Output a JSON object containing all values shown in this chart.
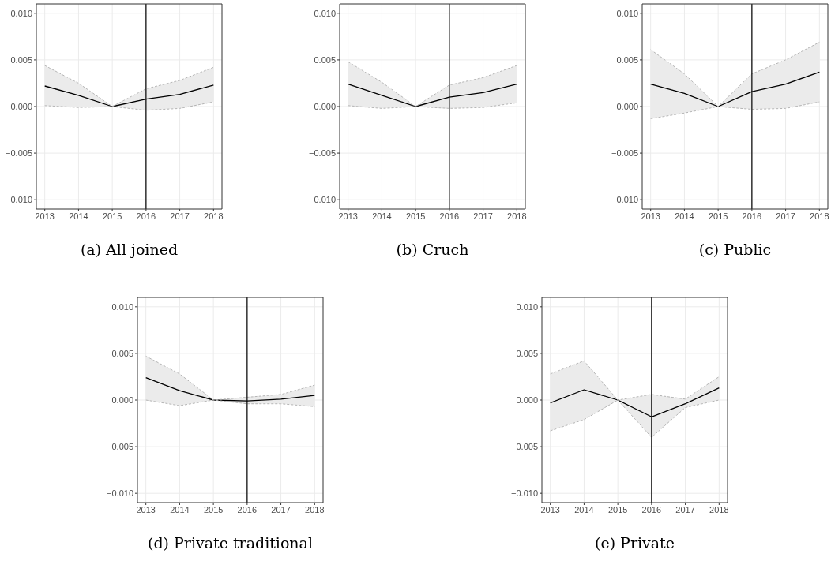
{
  "chart_data": [
    {
      "type": "line",
      "title": "(a) All joined",
      "x": [
        2013,
        2014,
        2015,
        2016,
        2017,
        2018
      ],
      "series": [
        {
          "color": "#000000",
          "values": [
            0.0022,
            0.0012,
            0,
            0.0008,
            0.0013,
            0.0023
          ],
          "lower": [
            0.0001,
            -0.0001,
            0,
            -0.0004,
            -0.0002,
            0.0005
          ],
          "upper": [
            0.0044,
            0.0025,
            0,
            0.0019,
            0.0028,
            0.0042
          ]
        },
        {
          "color": "#b5b5b5",
          "line_style": "dashed",
          "values": [
            0.0001,
            -0.0001,
            0,
            -0.0004,
            -0.0002,
            0.0005
          ]
        },
        {
          "color": "#b5b5b5",
          "line_style": "dashed",
          "values": [
            0.0044,
            0.0025,
            0,
            0.0019,
            0.0028,
            0.0042
          ]
        }
      ],
      "xlim": [
        2012.75,
        2018.25
      ],
      "xticks": [
        2013,
        2014,
        2015,
        2016,
        2017,
        2018
      ],
      "ylim": [
        -0.011,
        0.011
      ],
      "yticks": [
        {
          "value": -0.01,
          "label": "−0.010"
        },
        {
          "value": -0.005,
          "label": "−0.005"
        },
        {
          "value": 0,
          "label": "0.000"
        },
        {
          "value": 0.005,
          "label": "0.005"
        },
        {
          "value": 0.01,
          "label": "0.010"
        }
      ],
      "ref_lines": [
        {
          "axis": "x",
          "value": 2016,
          "color": "#000000"
        }
      ],
      "grid": true,
      "legend": false
    },
    {
      "type": "line",
      "title": "(b) Cruch",
      "x": [
        2013,
        2014,
        2015,
        2016,
        2017,
        2018
      ],
      "series": [
        {
          "color": "#000000",
          "values": [
            0.0024,
            0.0012,
            0,
            0.001,
            0.0015,
            0.0024
          ],
          "lower": [
            0.0001,
            -0.0002,
            0,
            -0.0002,
            -0.0001,
            0.0004
          ],
          "upper": [
            0.0048,
            0.0026,
            0,
            0.0023,
            0.0031,
            0.0044
          ]
        },
        {
          "color": "#b5b5b5",
          "line_style": "dashed",
          "values": [
            0.0001,
            -0.0002,
            0,
            -0.0002,
            -0.0001,
            0.0004
          ]
        },
        {
          "color": "#b5b5b5",
          "line_style": "dashed",
          "values": [
            0.0048,
            0.0026,
            0,
            0.0023,
            0.0031,
            0.0044
          ]
        }
      ],
      "xlim": [
        2012.75,
        2018.25
      ],
      "xticks": [
        2013,
        2014,
        2015,
        2016,
        2017,
        2018
      ],
      "ylim": [
        -0.011,
        0.011
      ],
      "yticks": [
        {
          "value": -0.01,
          "label": "−0.010"
        },
        {
          "value": -0.005,
          "label": "−0.005"
        },
        {
          "value": 0,
          "label": "0.000"
        },
        {
          "value": 0.005,
          "label": "0.005"
        },
        {
          "value": 0.01,
          "label": "0.010"
        }
      ],
      "ref_lines": [
        {
          "axis": "x",
          "value": 2016,
          "color": "#000000"
        }
      ],
      "grid": true,
      "legend": false
    },
    {
      "type": "line",
      "title": "(c) Public",
      "x": [
        2013,
        2014,
        2015,
        2016,
        2017,
        2018
      ],
      "series": [
        {
          "color": "#000000",
          "values": [
            0.0024,
            0.0014,
            0,
            0.0016,
            0.0024,
            0.0037
          ],
          "lower": [
            -0.0013,
            -0.0007,
            0,
            -0.0003,
            -0.0002,
            0.0005
          ],
          "upper": [
            0.0061,
            0.0035,
            0,
            0.0035,
            0.005,
            0.0069
          ]
        },
        {
          "color": "#b5b5b5",
          "line_style": "dashed",
          "values": [
            -0.0013,
            -0.0007,
            0,
            -0.0003,
            -0.0002,
            0.0005
          ]
        },
        {
          "color": "#b5b5b5",
          "line_style": "dashed",
          "values": [
            0.0061,
            0.0035,
            0,
            0.0035,
            0.005,
            0.0069
          ]
        }
      ],
      "xlim": [
        2012.75,
        2018.25
      ],
      "xticks": [
        2013,
        2014,
        2015,
        2016,
        2017,
        2018
      ],
      "ylim": [
        -0.011,
        0.011
      ],
      "yticks": [
        {
          "value": -0.01,
          "label": "−0.010"
        },
        {
          "value": -0.005,
          "label": "−0.005"
        },
        {
          "value": 0,
          "label": "0.000"
        },
        {
          "value": 0.005,
          "label": "0.005"
        },
        {
          "value": 0.01,
          "label": "0.010"
        }
      ],
      "ref_lines": [
        {
          "axis": "x",
          "value": 2016,
          "color": "#000000"
        }
      ],
      "grid": true,
      "legend": false
    },
    {
      "type": "line",
      "title": "(d) Private traditional",
      "x": [
        2013,
        2014,
        2015,
        2016,
        2017,
        2018
      ],
      "series": [
        {
          "color": "#000000",
          "values": [
            0.0024,
            0.001,
            0,
            -0.0001,
            0.0001,
            0.0005
          ],
          "lower": [
            0,
            -0.0006,
            0,
            -0.0004,
            -0.0004,
            -0.0007
          ],
          "upper": [
            0.0047,
            0.0028,
            0,
            0.0003,
            0.0006,
            0.0016
          ]
        },
        {
          "color": "#b5b5b5",
          "line_style": "dashed",
          "values": [
            0,
            -0.0006,
            0,
            -0.0004,
            -0.0004,
            -0.0007
          ]
        },
        {
          "color": "#b5b5b5",
          "line_style": "dashed",
          "values": [
            0.0047,
            0.0028,
            0,
            0.0003,
            0.0006,
            0.0016
          ]
        }
      ],
      "xlim": [
        2012.75,
        2018.25
      ],
      "xticks": [
        2013,
        2014,
        2015,
        2016,
        2017,
        2018
      ],
      "ylim": [
        -0.011,
        0.011
      ],
      "yticks": [
        {
          "value": -0.01,
          "label": "−0.010"
        },
        {
          "value": -0.005,
          "label": "−0.005"
        },
        {
          "value": 0,
          "label": "0.000"
        },
        {
          "value": 0.005,
          "label": "0.005"
        },
        {
          "value": 0.01,
          "label": "0.010"
        }
      ],
      "ref_lines": [
        {
          "axis": "x",
          "value": 2016,
          "color": "#000000"
        }
      ],
      "grid": true,
      "legend": false
    },
    {
      "type": "line",
      "title": "(e) Private",
      "x": [
        2013,
        2014,
        2015,
        2016,
        2017,
        2018
      ],
      "series": [
        {
          "color": "#000000",
          "values": [
            -0.0003,
            0.0011,
            0,
            -0.0018,
            -0.0004,
            0.0013
          ],
          "lower": [
            -0.0033,
            -0.0021,
            0,
            -0.004,
            -0.0008,
            0
          ],
          "upper": [
            0.0028,
            0.0042,
            0,
            0.0006,
            0.0001,
            0.0025
          ]
        },
        {
          "color": "#b5b5b5",
          "line_style": "dashed",
          "values": [
            -0.0033,
            -0.0021,
            0,
            -0.004,
            -0.0008,
            0
          ]
        },
        {
          "color": "#b5b5b5",
          "line_style": "dashed",
          "values": [
            0.0028,
            0.0042,
            0,
            0.0006,
            0.0001,
            0.0025
          ]
        }
      ],
      "xlim": [
        2012.75,
        2018.25
      ],
      "xticks": [
        2013,
        2014,
        2015,
        2016,
        2017,
        2018
      ],
      "ylim": [
        -0.011,
        0.011
      ],
      "yticks": [
        {
          "value": -0.01,
          "label": "−0.010"
        },
        {
          "value": -0.005,
          "label": "−0.005"
        },
        {
          "value": 0,
          "label": "0.000"
        },
        {
          "value": 0.005,
          "label": "0.005"
        },
        {
          "value": 0.01,
          "label": "0.010"
        }
      ],
      "ref_lines": [
        {
          "axis": "x",
          "value": 2016,
          "color": "#000000"
        }
      ],
      "grid": true,
      "legend": false
    }
  ]
}
